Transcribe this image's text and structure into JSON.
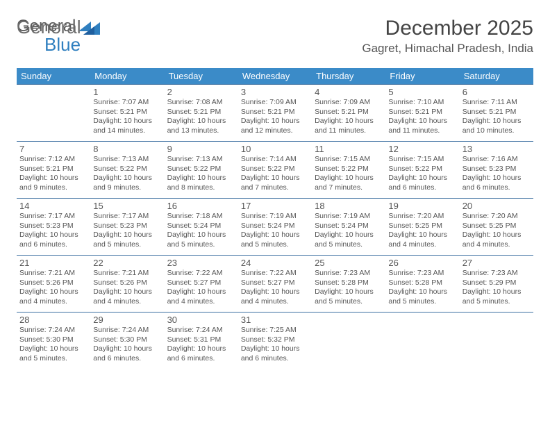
{
  "logo": {
    "text_a": "General",
    "text_b": "Blue"
  },
  "title": "December 2025",
  "location": "Gagret, Himachal Pradesh, India",
  "colors": {
    "header_bg": "#3b8bc8",
    "header_text": "#ffffff",
    "row_border": "#3b6fa0",
    "body_text": "#555555",
    "logo_accent": "#2f7fbf"
  },
  "weekdays": [
    "Sunday",
    "Monday",
    "Tuesday",
    "Wednesday",
    "Thursday",
    "Friday",
    "Saturday"
  ],
  "cells": [
    {
      "n": "",
      "sr": "",
      "ss": "",
      "dl": ""
    },
    {
      "n": "1",
      "sr": "7:07 AM",
      "ss": "5:21 PM",
      "dl": "10 hours and 14 minutes."
    },
    {
      "n": "2",
      "sr": "7:08 AM",
      "ss": "5:21 PM",
      "dl": "10 hours and 13 minutes."
    },
    {
      "n": "3",
      "sr": "7:09 AM",
      "ss": "5:21 PM",
      "dl": "10 hours and 12 minutes."
    },
    {
      "n": "4",
      "sr": "7:09 AM",
      "ss": "5:21 PM",
      "dl": "10 hours and 11 minutes."
    },
    {
      "n": "5",
      "sr": "7:10 AM",
      "ss": "5:21 PM",
      "dl": "10 hours and 11 minutes."
    },
    {
      "n": "6",
      "sr": "7:11 AM",
      "ss": "5:21 PM",
      "dl": "10 hours and 10 minutes."
    },
    {
      "n": "7",
      "sr": "7:12 AM",
      "ss": "5:21 PM",
      "dl": "10 hours and 9 minutes."
    },
    {
      "n": "8",
      "sr": "7:13 AM",
      "ss": "5:22 PM",
      "dl": "10 hours and 9 minutes."
    },
    {
      "n": "9",
      "sr": "7:13 AM",
      "ss": "5:22 PM",
      "dl": "10 hours and 8 minutes."
    },
    {
      "n": "10",
      "sr": "7:14 AM",
      "ss": "5:22 PM",
      "dl": "10 hours and 7 minutes."
    },
    {
      "n": "11",
      "sr": "7:15 AM",
      "ss": "5:22 PM",
      "dl": "10 hours and 7 minutes."
    },
    {
      "n": "12",
      "sr": "7:15 AM",
      "ss": "5:22 PM",
      "dl": "10 hours and 6 minutes."
    },
    {
      "n": "13",
      "sr": "7:16 AM",
      "ss": "5:23 PM",
      "dl": "10 hours and 6 minutes."
    },
    {
      "n": "14",
      "sr": "7:17 AM",
      "ss": "5:23 PM",
      "dl": "10 hours and 6 minutes."
    },
    {
      "n": "15",
      "sr": "7:17 AM",
      "ss": "5:23 PM",
      "dl": "10 hours and 5 minutes."
    },
    {
      "n": "16",
      "sr": "7:18 AM",
      "ss": "5:24 PM",
      "dl": "10 hours and 5 minutes."
    },
    {
      "n": "17",
      "sr": "7:19 AM",
      "ss": "5:24 PM",
      "dl": "10 hours and 5 minutes."
    },
    {
      "n": "18",
      "sr": "7:19 AM",
      "ss": "5:24 PM",
      "dl": "10 hours and 5 minutes."
    },
    {
      "n": "19",
      "sr": "7:20 AM",
      "ss": "5:25 PM",
      "dl": "10 hours and 4 minutes."
    },
    {
      "n": "20",
      "sr": "7:20 AM",
      "ss": "5:25 PM",
      "dl": "10 hours and 4 minutes."
    },
    {
      "n": "21",
      "sr": "7:21 AM",
      "ss": "5:26 PM",
      "dl": "10 hours and 4 minutes."
    },
    {
      "n": "22",
      "sr": "7:21 AM",
      "ss": "5:26 PM",
      "dl": "10 hours and 4 minutes."
    },
    {
      "n": "23",
      "sr": "7:22 AM",
      "ss": "5:27 PM",
      "dl": "10 hours and 4 minutes."
    },
    {
      "n": "24",
      "sr": "7:22 AM",
      "ss": "5:27 PM",
      "dl": "10 hours and 4 minutes."
    },
    {
      "n": "25",
      "sr": "7:23 AM",
      "ss": "5:28 PM",
      "dl": "10 hours and 5 minutes."
    },
    {
      "n": "26",
      "sr": "7:23 AM",
      "ss": "5:28 PM",
      "dl": "10 hours and 5 minutes."
    },
    {
      "n": "27",
      "sr": "7:23 AM",
      "ss": "5:29 PM",
      "dl": "10 hours and 5 minutes."
    },
    {
      "n": "28",
      "sr": "7:24 AM",
      "ss": "5:30 PM",
      "dl": "10 hours and 5 minutes."
    },
    {
      "n": "29",
      "sr": "7:24 AM",
      "ss": "5:30 PM",
      "dl": "10 hours and 6 minutes."
    },
    {
      "n": "30",
      "sr": "7:24 AM",
      "ss": "5:31 PM",
      "dl": "10 hours and 6 minutes."
    },
    {
      "n": "31",
      "sr": "7:25 AM",
      "ss": "5:32 PM",
      "dl": "10 hours and 6 minutes."
    },
    {
      "n": "",
      "sr": "",
      "ss": "",
      "dl": ""
    },
    {
      "n": "",
      "sr": "",
      "ss": "",
      "dl": ""
    },
    {
      "n": "",
      "sr": "",
      "ss": "",
      "dl": ""
    }
  ],
  "labels": {
    "sunrise": "Sunrise: ",
    "sunset": "Sunset: ",
    "daylight": "Daylight: "
  }
}
